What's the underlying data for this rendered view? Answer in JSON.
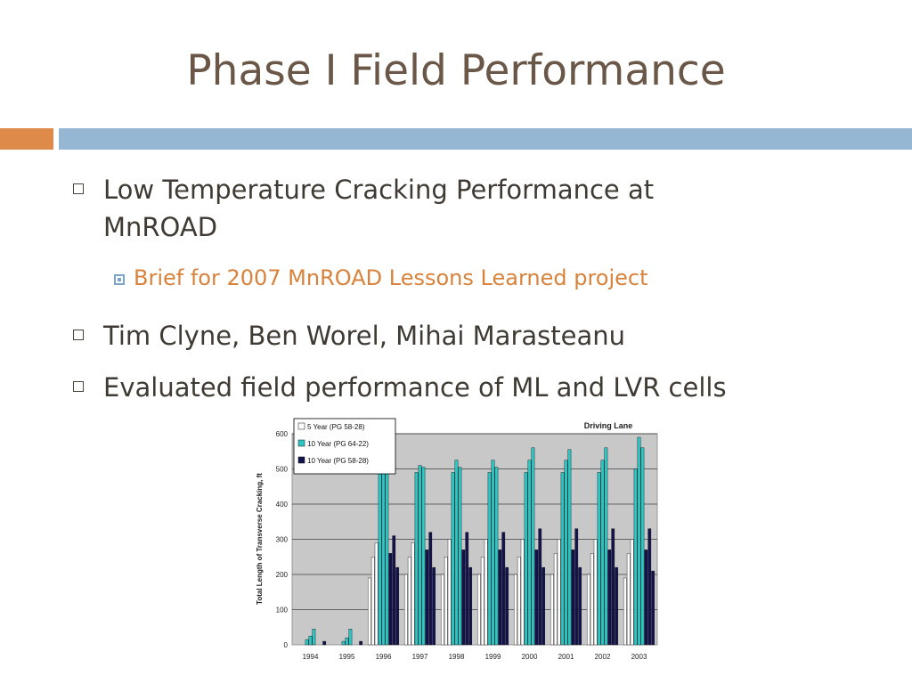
{
  "slide": {
    "title": "Phase I Field Performance",
    "bullets": [
      {
        "line1": "Low Temperature Cracking Performance at",
        "line2": "MnROAD"
      },
      {
        "line1": "Tim Clyne, Ben Worel, Mihai Marasteanu"
      },
      {
        "line1": "Evaluated field performance of ML and LVR cells"
      }
    ],
    "sub_bullet": "Brief for 2007 MnROAD Lessons Learned project",
    "colors": {
      "title": "#6b5748",
      "accent_orange": "#de8a4a",
      "accent_blue": "#95b7d4",
      "sub_bullet": "#d9823c"
    }
  },
  "chart_data": {
    "type": "bar",
    "title": "Driving Lane",
    "ylabel": "Total Length of Transverse Cracking, ft",
    "xlabel": "",
    "ylim": [
      0,
      600
    ],
    "yticks": [
      "0",
      "100",
      "200",
      "300",
      "400",
      "500",
      "600"
    ],
    "categories": [
      "1994",
      "1995",
      "1996",
      "1997",
      "1998",
      "1999",
      "2000",
      "2001",
      "2002",
      "2003"
    ],
    "legend_position": "top-left",
    "series": [
      {
        "name": "5 Year (PG 58-28)",
        "color": "#ffffff",
        "values": [
          [
            0,
            0,
            0
          ],
          [
            0,
            0,
            0
          ],
          [
            190,
            250,
            290
          ],
          [
            200,
            250,
            290
          ],
          [
            200,
            250,
            300
          ],
          [
            200,
            250,
            300
          ],
          [
            200,
            250,
            300
          ],
          [
            200,
            260,
            300
          ],
          [
            200,
            260,
            300
          ],
          [
            190,
            260,
            300
          ]
        ]
      },
      {
        "name": "10 Year (PG 64-22)",
        "color": "#2cc7c4",
        "values": [
          [
            15,
            25,
            45
          ],
          [
            10,
            20,
            45
          ],
          [
            500,
            510,
            510
          ],
          [
            490,
            510,
            505
          ],
          [
            490,
            525,
            505
          ],
          [
            490,
            525,
            505
          ],
          [
            490,
            525,
            560
          ],
          [
            490,
            525,
            555
          ],
          [
            490,
            525,
            560
          ],
          [
            500,
            590,
            560
          ]
        ]
      },
      {
        "name": "10 Year (PG 58-28)",
        "color": "#12124e",
        "values": [
          [
            0,
            0,
            10
          ],
          [
            0,
            0,
            10
          ],
          [
            260,
            310,
            220
          ],
          [
            270,
            320,
            220
          ],
          [
            270,
            320,
            220
          ],
          [
            270,
            320,
            220
          ],
          [
            270,
            330,
            220
          ],
          [
            270,
            330,
            220
          ],
          [
            270,
            330,
            220
          ],
          [
            270,
            330,
            210
          ]
        ]
      }
    ]
  }
}
